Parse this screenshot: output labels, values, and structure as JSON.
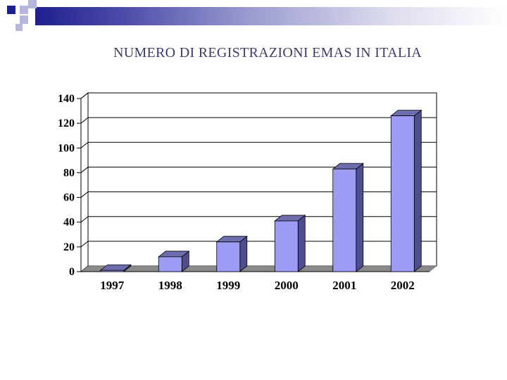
{
  "slide": {
    "title": "NUMERO DI REGISTRAZIONI EMAS IN ITALIA",
    "accent_color": "#1f1f8f"
  },
  "chart_data": {
    "type": "bar",
    "title": "",
    "xlabel": "",
    "ylabel": "",
    "categories": [
      "1997",
      "1998",
      "1999",
      "2000",
      "2001",
      "2002"
    ],
    "values": [
      1,
      12,
      24,
      41,
      83,
      126
    ],
    "ylim": [
      0,
      140
    ],
    "yticks": [
      "0",
      "20",
      "40",
      "60",
      "80",
      "100",
      "120",
      "140"
    ],
    "grid": true,
    "style": "3d",
    "bar_color": "#9c9cf4",
    "bar_side_color": "#4e4e8e",
    "bar_top_color": "#6e6eae",
    "floor_color": "#8a8a8a"
  }
}
